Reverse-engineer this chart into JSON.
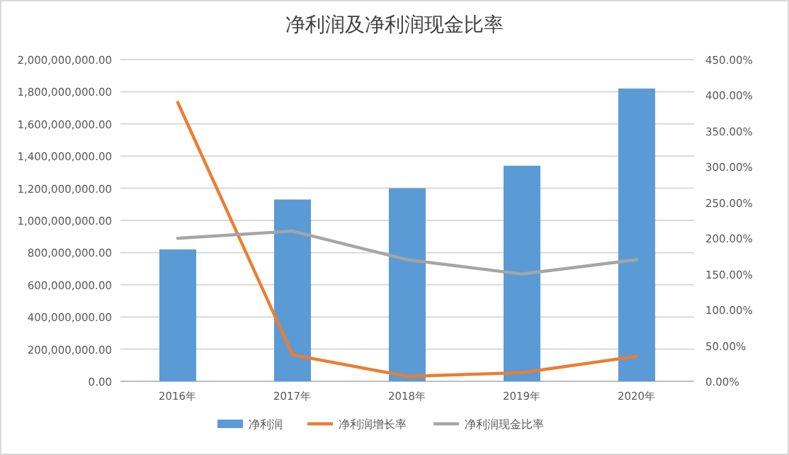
{
  "chart_data": {
    "type": "bar",
    "title": "净利润及净利润现金比率",
    "categories": [
      "2016年",
      "2017年",
      "2018年",
      "2019年",
      "2020年"
    ],
    "series": [
      {
        "name": "净利润",
        "color": "#5b9bd5",
        "values": [
          820000000,
          1130000000,
          1200000000,
          1340000000,
          1820000000
        ]
      },
      {
        "name": "净利润增长率",
        "type": "line",
        "axis": "y2",
        "color": "#ed7d31",
        "values": [
          390,
          37,
          7,
          12,
          35
        ]
      },
      {
        "name": "净利润现金比率",
        "type": "line",
        "axis": "y2",
        "color": "#a5a5a5",
        "values": [
          200,
          210,
          170,
          150,
          170
        ]
      }
    ],
    "ylim": [
      0,
      2000000000
    ],
    "yticks": [
      {
        "value": 0,
        "label": "0.00"
      },
      {
        "value": 200000000,
        "label": "200,000,000.00"
      },
      {
        "value": 400000000,
        "label": "400,000,000.00"
      },
      {
        "value": 600000000,
        "label": "600,000,000.00"
      },
      {
        "value": 800000000,
        "label": "800,000,000.00"
      },
      {
        "value": 1000000000,
        "label": "1,000,000,000.00"
      },
      {
        "value": 1200000000,
        "label": "1,200,000,000.00"
      },
      {
        "value": 1400000000,
        "label": "1,400,000,000.00"
      },
      {
        "value": 1600000000,
        "label": "1,600,000,000.00"
      },
      {
        "value": 1800000000,
        "label": "1,800,000,000.00"
      },
      {
        "value": 2000000000,
        "label": "2,000,000,000.00"
      }
    ],
    "y2lim": [
      0,
      450
    ],
    "y2ticks": [
      {
        "value": 0,
        "label": "0.00%"
      },
      {
        "value": 50,
        "label": "50.00%"
      },
      {
        "value": 100,
        "label": "100.00%"
      },
      {
        "value": 150,
        "label": "150.00%"
      },
      {
        "value": 200,
        "label": "200.00%"
      },
      {
        "value": 250,
        "label": "250.00%"
      },
      {
        "value": 300,
        "label": "300.00%"
      },
      {
        "value": 350,
        "label": "350.00%"
      },
      {
        "value": 400,
        "label": "400.00%"
      },
      {
        "value": 450,
        "label": "450.00%"
      }
    ],
    "grid": "y",
    "legend": "bottom",
    "marker": "none"
  }
}
